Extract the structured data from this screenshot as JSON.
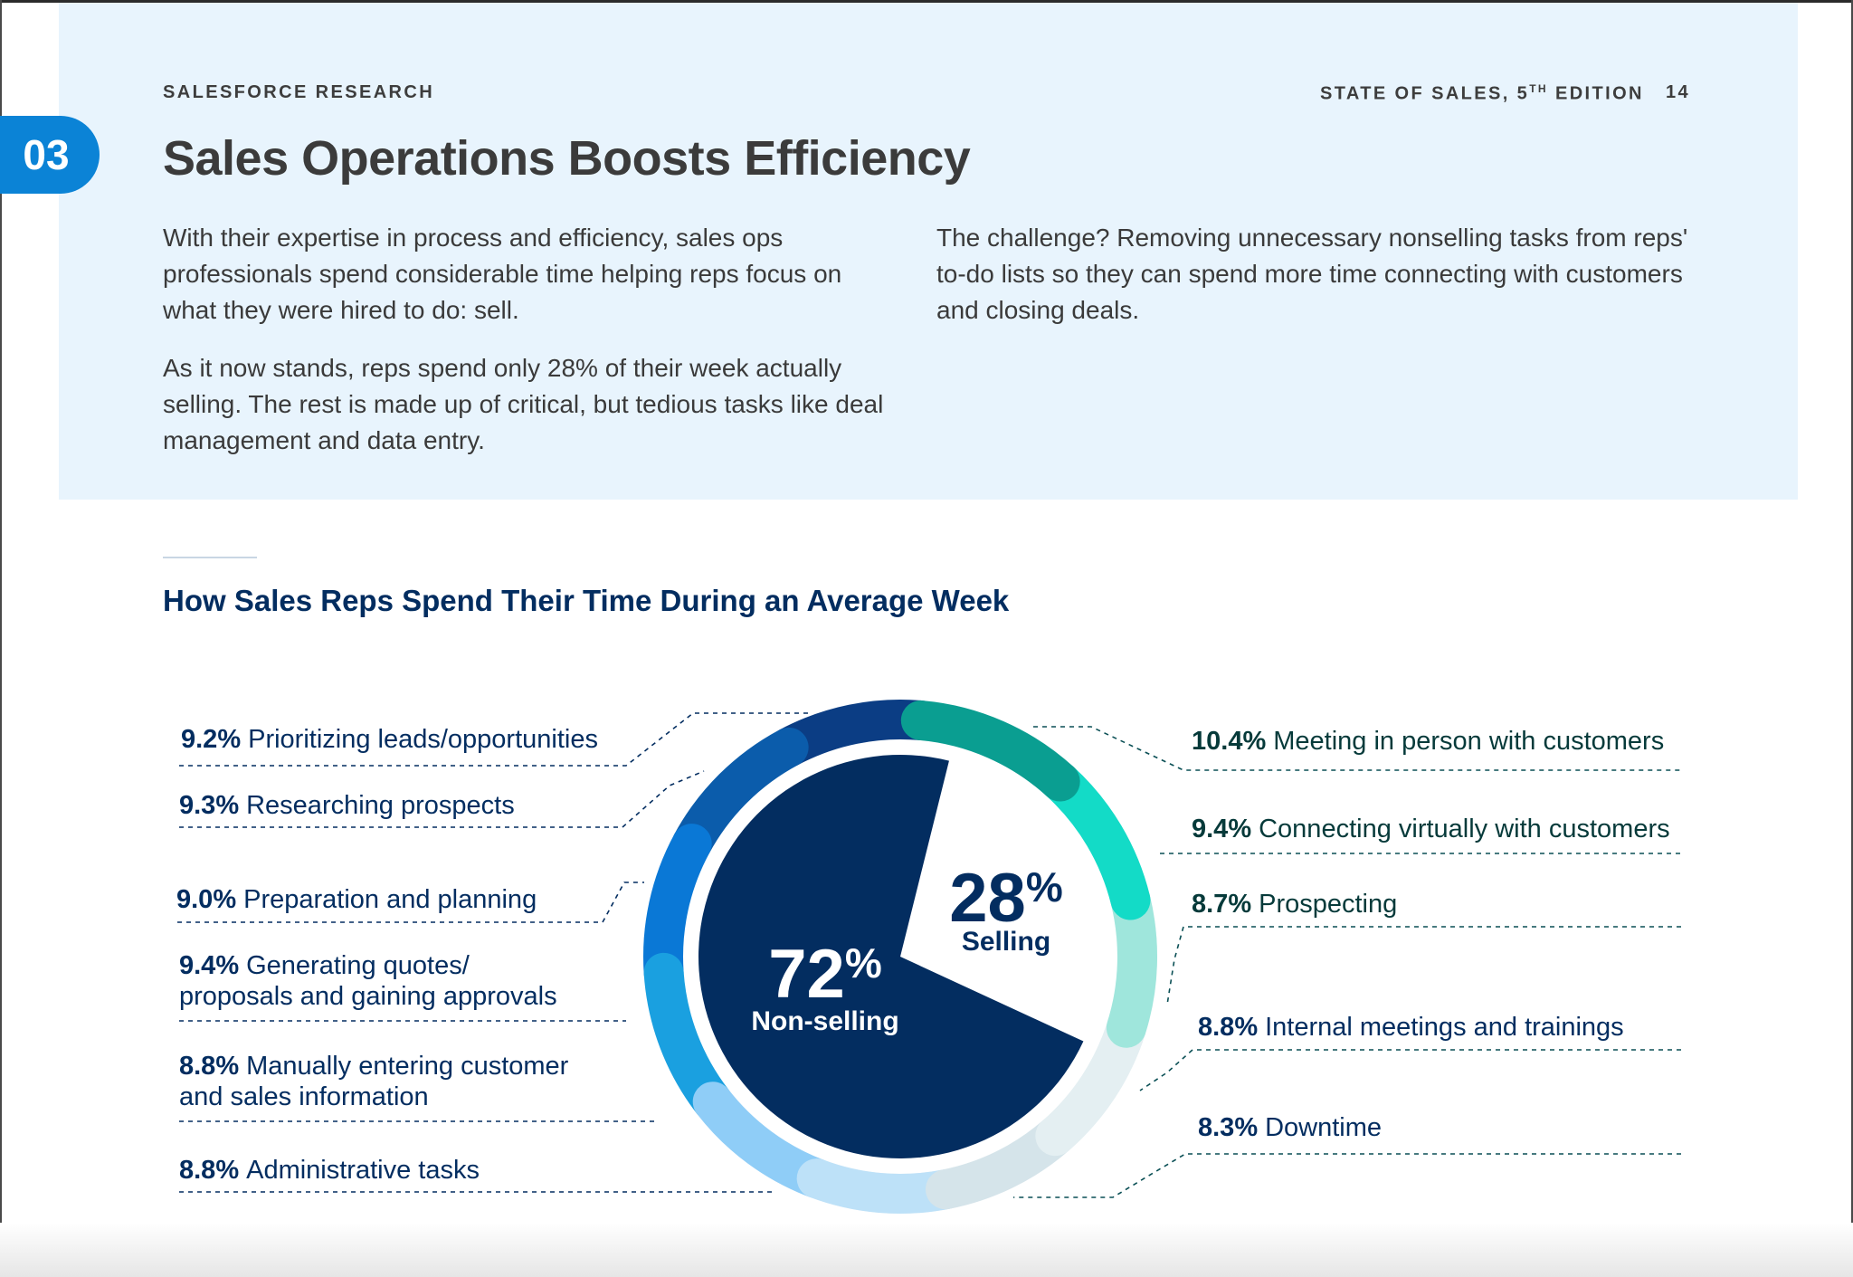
{
  "header": {
    "left": "SALESFORCE RESEARCH",
    "right_prefix": "STATE OF SALES, 5",
    "right_sup": "TH",
    "right_suffix": " EDITION",
    "page_number": "14"
  },
  "section": {
    "number": "03",
    "title": "Sales Operations Boosts Efficiency"
  },
  "body": {
    "para1": "With their expertise in process and efficiency, sales ops professionals spend considerable time helping reps focus on what they were hired to do: sell.",
    "para2": "As it now stands, reps spend only 28% of their week actually selling. The rest is made up of critical, but tedious tasks like deal management and data entry.",
    "para3": "The challenge? Removing unnecessary nonselling tasks from reps' to-do lists so they can spend more time connecting with customers and closing deals."
  },
  "colors": {
    "navy": "#032d60",
    "badge_blue": "#0b83d6",
    "banner_bg": "#e8f4fd"
  },
  "chart_data": {
    "type": "pie",
    "title": "How Sales Reps Spend Their Time During an Average Week",
    "inner": [
      {
        "name": "Selling",
        "value": 28,
        "label": "28%"
      },
      {
        "name": "Non-selling",
        "value": 72,
        "label": "72%"
      }
    ],
    "center_labels": {
      "selling_value": "28",
      "selling_pct": "%",
      "selling_label": "Selling",
      "nonselling_value": "72",
      "nonselling_pct": "%",
      "nonselling_label": "Non-selling"
    },
    "outer": [
      {
        "label": "Meeting in person with customers",
        "value": 10.4,
        "pct": "10.4%",
        "color": "#0a9e91"
      },
      {
        "label": "Connecting virtually with customers",
        "value": 9.4,
        "pct": "9.4%",
        "color": "#13dbc7"
      },
      {
        "label": "Prospecting",
        "value": 8.7,
        "pct": "8.7%",
        "color": "#9fe6dc"
      },
      {
        "label": "Internal meetings and trainings",
        "value": 8.8,
        "pct": "8.8%",
        "color": "#e4eff2"
      },
      {
        "label": "Downtime",
        "value": 8.3,
        "pct": "8.3%",
        "color": "#d5e4ea"
      },
      {
        "label": "Administrative tasks",
        "value": 8.8,
        "pct": "8.8%",
        "color": "#bde1f8"
      },
      {
        "label": "Manually entering customer and sales information",
        "line1": "Manually entering customer",
        "line2": "and sales information",
        "value": 8.8,
        "pct": "8.8%",
        "color": "#8fcdf7"
      },
      {
        "label": "Generating quotes/ proposals and gaining approvals",
        "line1": "Generating quotes/",
        "line2": "proposals and gaining approvals",
        "value": 9.4,
        "pct": "9.4%",
        "color": "#1aa0e0"
      },
      {
        "label": "Preparation and planning",
        "value": 9.0,
        "pct": "9.0%",
        "color": "#0a78d6"
      },
      {
        "label": "Researching prospects",
        "value": 9.3,
        "pct": "9.3%",
        "color": "#0b5cab"
      },
      {
        "label": "Prioritizing leads/opportunities",
        "value": 9.2,
        "pct": "9.2%",
        "color": "#0b3d84"
      }
    ]
  }
}
